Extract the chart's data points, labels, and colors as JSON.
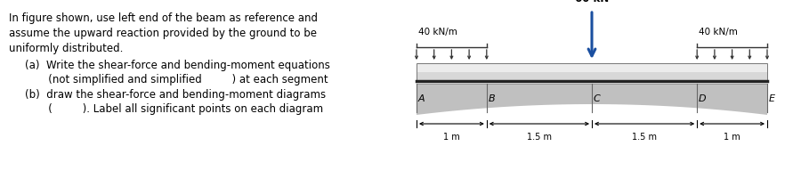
{
  "text_lines": [
    [
      "In figure shown, use left end of the beam as reference and",
      0.0,
      false
    ],
    [
      "assume the upward reaction provided by the ground to be",
      0.0,
      false
    ],
    [
      "uniformly distributed.",
      0.0,
      false
    ],
    [
      "(a)  Write the shear-force and bending-moment equations",
      0.03,
      false
    ],
    [
      "       (not simplified and simplified         ) at each segment",
      0.03,
      false
    ],
    [
      "(b)  draw the shear-force and bending-moment diagrams",
      0.03,
      false
    ],
    [
      "       (         ). Label all significant points on each diagram",
      0.03,
      false
    ]
  ],
  "bg_color": "#ffffff",
  "text_color": "#000000",
  "text_fontsize": 8.5,
  "beam_color_top": "#f0f0f0",
  "beam_color_bot": "#d8d8d8",
  "ground_color": "#c0c0c0",
  "ground_dark": "#a8a8a8",
  "divider_color": "#666666",
  "dist_arrow_color": "#333333",
  "point_arrow_color": "#1a4fa0",
  "dim_color": "#000000"
}
